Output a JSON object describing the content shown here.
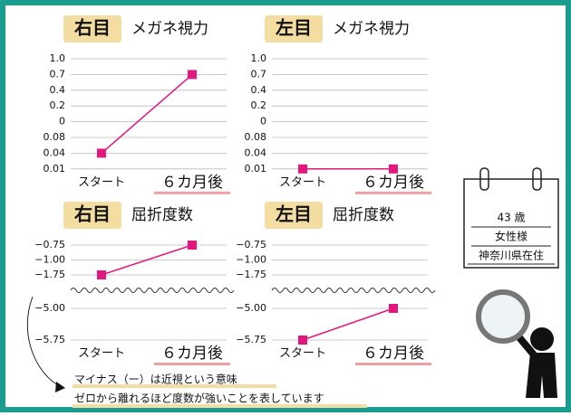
{
  "chart_data": [
    {
      "type": "line",
      "eye": "右目",
      "title": "メガネ視力",
      "categories": [
        "スタート",
        "６カ月後"
      ],
      "series": [
        {
          "color": "#e3177d",
          "values": [
            0.04,
            0.7
          ]
        }
      ],
      "yticks": [
        {
          "value": 1,
          "label": "1.0"
        },
        0.7,
        0.4,
        0.2,
        0,
        0.08,
        0.04,
        0.01
      ],
      "grid": true
    },
    {
      "type": "line",
      "eye": "左目",
      "title": "メガネ視力",
      "categories": [
        "スタート",
        "６カ月後"
      ],
      "series": [
        {
          "color": "#e3177d",
          "values": [
            0.01,
            0.01
          ]
        }
      ],
      "yticks": [
        {
          "value": 1,
          "label": "1.0"
        },
        0.7,
        0.4,
        0.2,
        0,
        0.08,
        0.04,
        0.01
      ],
      "grid": true
    },
    {
      "type": "line",
      "eye": "右目",
      "title": "屈折度数",
      "categories": [
        "スタート",
        "６カ月後"
      ],
      "series": [
        {
          "color": "#e3177d",
          "values": [
            -1.75,
            -0.75
          ]
        }
      ],
      "yticks": [
        {
          "value": -0.75,
          "label": "−0.75"
        },
        {
          "value": -1,
          "label": "−1.00"
        },
        {
          "value": -1.75,
          "label": "−1.75"
        },
        {
          "value": -5,
          "label": "−5.00"
        },
        {
          "value": -5.75,
          "label": "−5.75"
        }
      ],
      "grid": true,
      "axis_break_after": 2
    },
    {
      "type": "line",
      "eye": "左目",
      "title": "屈折度数",
      "categories": [
        "スタート",
        "６カ月後"
      ],
      "series": [
        {
          "color": "#e3177d",
          "values": [
            -5.75,
            -5
          ]
        }
      ],
      "yticks": [
        {
          "value": -0.75,
          "label": "−0.75"
        },
        {
          "value": -1,
          "label": "−1.00"
        },
        {
          "value": -1.75,
          "label": "−1.75"
        },
        {
          "value": -5,
          "label": "−5.00"
        },
        {
          "value": -5.75,
          "label": "−5.75"
        }
      ],
      "grid": true,
      "axis_break_after": 2
    }
  ],
  "profile": {
    "age": "43 歳",
    "gender": "女性様",
    "residence": "神奈川県在住"
  },
  "note": [
    "マイナス（ー）は近視という意味",
    "ゼロから離れるほど度数が強いことを表しています"
  ]
}
